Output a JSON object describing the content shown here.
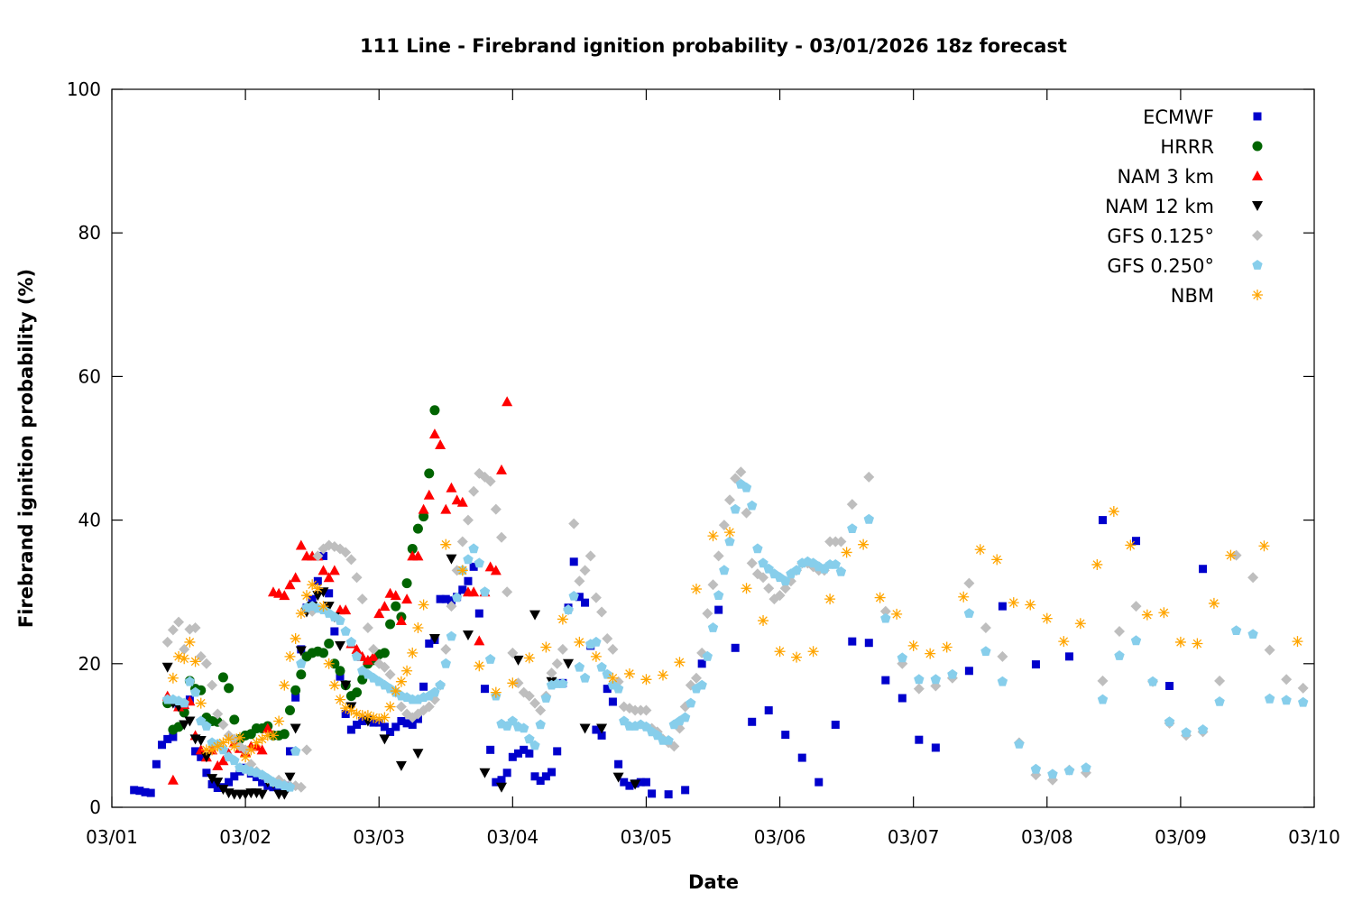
{
  "chart_data": {
    "type": "scatter",
    "title": "111 Line - Firebrand ignition probability - 03/01/2026 18z forecast",
    "xlabel": "Date",
    "ylabel": "Firebrand ignition probability (%)",
    "x_units": "hours since 03/01 00z",
    "xlim": [
      0,
      216
    ],
    "ylim": [
      0,
      100
    ],
    "x_ticks": [
      {
        "hour": 0,
        "label": "03/01"
      },
      {
        "hour": 24,
        "label": "03/02"
      },
      {
        "hour": 48,
        "label": "03/03"
      },
      {
        "hour": 72,
        "label": "03/04"
      },
      {
        "hour": 96,
        "label": "03/05"
      },
      {
        "hour": 120,
        "label": "03/06"
      },
      {
        "hour": 144,
        "label": "03/07"
      },
      {
        "hour": 168,
        "label": "03/08"
      },
      {
        "hour": 192,
        "label": "03/09"
      },
      {
        "hour": 216,
        "label": "03/10"
      }
    ],
    "y_ticks": [
      0,
      20,
      40,
      60,
      80,
      100
    ],
    "legend_position": "top-right",
    "grid": false,
    "series": [
      {
        "name": "ECMWF",
        "marker": "square",
        "color": "#0000CC",
        "segments": [
          {
            "start": 4,
            "step": 1,
            "values": [
              2.4,
              2.3,
              2.1,
              2.0,
              6.0,
              8.7,
              9.5,
              9.8,
              14,
              14.5,
              15,
              7.8,
              7,
              4.8,
              3.2,
              2.7,
              2.8,
              3.5,
              4.3,
              5,
              5.5,
              4.7,
              4.2,
              3.5,
              3,
              2.8,
              2.7,
              3,
              7.8,
              15.3,
              22,
              27.8,
              29,
              31.5,
              35,
              29.8,
              24.5,
              18.2,
              13,
              10.8,
              11.5,
              12,
              12.3,
              11.8,
              11.8,
              11.2,
              10.5,
              11.2,
              12,
              11.7,
              11.5,
              12.3,
              16.8,
              22.8,
              23.3,
              29,
              29,
              28.8,
              29.3,
              30.3,
              31.5,
              33.5,
              27,
              16.5,
              8,
              3.5,
              3.8,
              4.8,
              7,
              7.5,
              8,
              7.5,
              4.3,
              3.7,
              4.3,
              4.9,
              7.8,
              17.3,
              27.8,
              34.2,
              29.3,
              28.5,
              22.5,
              10.8,
              10,
              16.5,
              14.7,
              6,
              3.5,
              3,
              3.3,
              3.5,
              3.5
            ]
          },
          {
            "start": 97,
            "step": 3,
            "values": [
              1.9,
              1.8,
              2.4,
              20,
              27.5,
              22.2,
              11.9,
              13.5,
              10.1,
              6.9,
              3.5,
              11.5,
              23.1,
              22.9,
              17.7,
              15.2,
              9.4,
              8.3
            ]
          },
          {
            "start": 154,
            "step": 6,
            "values": [
              19,
              28,
              19.9,
              21,
              40,
              37.1,
              16.9,
              33.2
            ]
          }
        ]
      },
      {
        "name": "HRRR",
        "marker": "circle",
        "color": "#006400",
        "segments": [
          {
            "start": 10,
            "step": 1,
            "values": [
              14.5,
              10.8,
              11.2,
              13.2,
              17.6,
              16.5,
              16.3,
              12.5,
              12,
              11.9,
              18.1,
              16.6,
              12.2,
              9.5,
              10,
              10.2,
              11,
              11,
              11.3,
              10,
              10,
              10.2,
              13.5,
              16.3,
              18.5,
              21,
              21.5,
              21.7,
              21.5,
              22.8,
              20,
              19,
              17,
              15.5,
              16,
              17.8,
              20,
              20.5,
              21.3,
              21.5,
              25.5,
              28,
              26.5,
              31.2,
              36,
              38.8,
              40.5,
              46.5,
              55.3
            ]
          }
        ]
      },
      {
        "name": "NAM 3 km",
        "marker": "triangle-up",
        "color": "#FF0000",
        "segments": [
          {
            "start": 10,
            "step": 1,
            "values": [
              15.5,
              3.8,
              14,
              14.3,
              14.8,
              10,
              8,
              7,
              8,
              5.8,
              6.5,
              7.5,
              9,
              8.2,
              7.7,
              8.5,
              8.5,
              8,
              11,
              30,
              29.8,
              29.5,
              31,
              32,
              36.5,
              35,
              35,
              35,
              33,
              32,
              33,
              27.5,
              27.5,
              22.8,
              22,
              21,
              20.5,
              21,
              27,
              28,
              29.8,
              29.5,
              26,
              29,
              35,
              35,
              41.5,
              43.5,
              52,
              50.5,
              41.5,
              44.5,
              42.8,
              42.5,
              30,
              30,
              23.2,
              30,
              33.5,
              33,
              47,
              56.5
            ]
          }
        ]
      },
      {
        "name": "NAM 12 km",
        "marker": "triangle-down",
        "color": "#000000",
        "segments": [
          {
            "start": 10,
            "step": 1,
            "values": [
              19.5,
              14.5,
              14,
              11.5,
              12,
              9.5,
              9.3,
              7,
              4,
              3.5,
              2.5,
              2,
              1.8,
              1.8,
              1.8,
              2,
              2,
              1.8,
              3.5,
              3.3,
              1.8,
              1.8,
              4.2,
              11,
              21.8,
              27.2,
              28,
              29.5,
              30,
              28,
              26.5,
              22.5,
              17,
              14
            ]
          },
          {
            "start": 46,
            "step": 3,
            "values": [
              12,
              9.5,
              5.8,
              7.5,
              23.5,
              34.6,
              24,
              4.8,
              2.8,
              20.5,
              26.8,
              17.5,
              20,
              11,
              11,
              4.2,
              3.2
            ]
          }
        ]
      },
      {
        "name": "GFS 0.125°",
        "marker": "diamond",
        "color": "#BEBEBE",
        "segments": [
          {
            "start": 10,
            "step": 1,
            "values": [
              23,
              24.7,
              25.8,
              22,
              24.8,
              25,
              21,
              20,
              17,
              13,
              11.5,
              10,
              9.5,
              8.5,
              8,
              6,
              5,
              4.5,
              4,
              3.5,
              3.8,
              3.2,
              3,
              3,
              2.8,
              8,
              27.3,
              35,
              36,
              36.5,
              36.3,
              36,
              35.5,
              34.5,
              32,
              29,
              25,
              22,
              20,
              19.5,
              18.5,
              16,
              14,
              13,
              12.5,
              13,
              13.5,
              14,
              15,
              17,
              22,
              28,
              33,
              37,
              40,
              44,
              46.5,
              46,
              45.4,
              41.5,
              37.6,
              30,
              21.5,
              17.3,
              16,
              15.5,
              14.5,
              13.5,
              15.5,
              18.7,
              20,
              22,
              27.5,
              39.5,
              31.5,
              33,
              35,
              29.2,
              27.2,
              23.5,
              22,
              17.5,
              14,
              13.8,
              13.5,
              13.5,
              13.5,
              11,
              10.5,
              9.5,
              9,
              8.5,
              11,
              14,
              17,
              18,
              21.5,
              27,
              31,
              35,
              39.3,
              42.8,
              45.8,
              46.7,
              41,
              34,
              32.5,
              32,
              30.5,
              29,
              29.5,
              30.5,
              31.5,
              33,
              34,
              34,
              33.5,
              33,
              33,
              37,
              37,
              37
            ]
          },
          {
            "start": 133,
            "step": 3,
            "values": [
              42.2,
              46,
              27.3,
              20,
              16.5,
              16.9,
              18,
              31.2,
              25,
              21,
              9,
              4.5,
              3.8,
              5.2,
              4.8,
              17.6,
              24.5,
              28,
              17.5,
              11.7,
              10,
              10.5,
              17.6,
              35.1,
              32,
              21.9,
              17.8,
              16.6
            ]
          }
        ]
      },
      {
        "name": "GFS 0.250°",
        "marker": "pentagon",
        "color": "#87CEEB",
        "segments": [
          {
            "start": 10,
            "step": 1,
            "values": [
              15,
              15,
              14.8,
              14.5,
              17.5,
              16,
              12,
              11.3,
              9,
              8.8,
              8,
              7,
              6.5,
              5.5,
              5.3,
              5,
              4.8,
              4.5,
              4,
              3.5,
              3.2,
              3,
              2.8,
              7.8,
              20,
              27.8,
              28,
              27.7,
              27.5,
              27,
              26.5,
              26,
              24.5,
              23,
              21,
              19,
              18.5,
              18,
              17.5,
              17,
              16.5,
              16,
              15.5,
              15.3,
              15,
              15,
              15.3,
              15.5,
              16,
              17,
              20,
              23.8,
              29.2,
              33,
              34.5,
              36,
              34,
              30,
              20.6,
              15.5,
              11.6,
              11.3,
              12,
              11.2,
              11,
              9.5,
              8.6,
              11.5,
              15.2,
              17,
              17.2,
              17.2,
              27.5,
              29.4,
              19.5,
              18,
              22.7,
              23,
              19.5,
              18.5,
              17,
              16.5,
              12,
              11.3,
              11.3,
              11.5,
              11.2,
              10.5,
              10,
              9.3,
              9.3,
              11.5,
              12,
              12.5,
              14.5,
              16.5,
              17,
              21,
              25,
              29.5,
              33,
              37,
              41.5,
              45,
              44.5,
              42,
              36,
              34,
              33.2,
              32.5,
              32,
              31.5,
              32.5,
              33,
              34,
              34.2,
              34,
              33.5,
              33.2,
              33.8,
              33.8,
              32.8
            ]
          },
          {
            "start": 133,
            "step": 3,
            "values": [
              38.8,
              40.1,
              26.3,
              20.8,
              17.8,
              17.8,
              18.5,
              27,
              21.7,
              17.5,
              8.8,
              5.3,
              4.6,
              5.1,
              5.5,
              15,
              21.1,
              23.2,
              17.5,
              11.9,
              10.4,
              10.8,
              14.7,
              24.6,
              24.1,
              15.1,
              14.9,
              14.6
            ]
          }
        ]
      },
      {
        "name": "NBM",
        "marker": "asterisk",
        "color": "#FFA500",
        "segments": [
          {
            "start": 11,
            "step": 1,
            "values": [
              18,
              21,
              20.7,
              23,
              20.3,
              14.5,
              8,
              8,
              8.5,
              9,
              9.5,
              8.5,
              9.7,
              7,
              8,
              9,
              9.5,
              10,
              10,
              12,
              17,
              21,
              23.5,
              27,
              29.5,
              31,
              30.5,
              28,
              20,
              17,
              15,
              13.8,
              13.5,
              13,
              12.8,
              12.8,
              12.5,
              12.3,
              12.5,
              14,
              16.2,
              17.5,
              19,
              21.5,
              25,
              28.2
            ]
          },
          {
            "start": 60,
            "step": 3,
            "values": [
              36.6,
              33,
              19.7,
              16,
              17.3,
              20.8,
              22.3,
              26.2,
              23,
              21,
              18,
              18.6,
              17.8,
              18.4,
              20.2,
              30.4,
              37.8,
              38.3,
              30.5,
              26,
              21.7,
              20.9,
              21.7,
              29,
              35.5,
              36.6,
              29.2,
              26.9,
              22.5,
              21.4,
              22.3,
              29.3,
              35.9,
              34.5,
              28.5,
              28.2,
              26.3,
              23.1,
              25.6,
              33.8,
              41.2,
              36.5,
              26.8,
              27.1,
              23,
              22.8,
              28.4,
              35.1,
              null,
              36.4,
              null,
              23.1
            ]
          }
        ]
      }
    ]
  }
}
